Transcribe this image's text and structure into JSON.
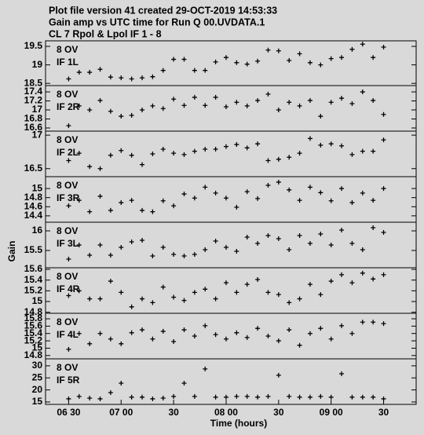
{
  "header": {
    "lines": [
      "Plot file version 41  created 29-OCT-2019 14:53:33",
      "Gain amp vs UTC time for Run Q 00.UVDATA.1",
      "CL 7  Rpol & Lpol  IF 1 - 8"
    ]
  },
  "y_label": "Gain",
  "chart_data": [
    {
      "type": "scatter",
      "labels": [
        "8 OV",
        "IF 1L"
      ],
      "xlim": [
        6.28,
        9.81
      ],
      "ylim": [
        18.44,
        19.65
      ],
      "yticks": [
        18.5,
        19.0,
        19.5
      ],
      "x": [
        6.5,
        6.6,
        6.7,
        6.8,
        6.9,
        7.0,
        7.1,
        7.2,
        7.3,
        7.4,
        7.5,
        7.6,
        7.7,
        7.8,
        7.9,
        8.0,
        8.1,
        8.2,
        8.3,
        8.4,
        8.5,
        8.6,
        8.7,
        8.8,
        8.9,
        9.0,
        9.1,
        9.2,
        9.3,
        9.4,
        9.5
      ],
      "values": [
        18.62,
        18.8,
        18.8,
        18.88,
        18.67,
        18.65,
        18.62,
        18.65,
        18.68,
        18.85,
        19.15,
        19.15,
        18.85,
        18.85,
        19.08,
        19.2,
        19.06,
        19.02,
        19.1,
        19.4,
        19.38,
        19.12,
        19.3,
        19.06,
        19.0,
        19.17,
        19.2,
        19.42,
        19.56,
        19.2,
        19.48
      ]
    },
    {
      "type": "scatter",
      "labels": [
        "8 OV",
        "IF 2R"
      ],
      "xlim": [
        6.28,
        9.81
      ],
      "ylim": [
        16.53,
        17.54
      ],
      "yticks": [
        16.6,
        16.8,
        17.0,
        17.2,
        17.4
      ],
      "x": [
        6.5,
        6.6,
        6.7,
        6.8,
        6.9,
        7.0,
        7.1,
        7.2,
        7.3,
        7.4,
        7.5,
        7.6,
        7.7,
        7.8,
        7.9,
        8.0,
        8.1,
        8.2,
        8.3,
        8.4,
        8.5,
        8.6,
        8.7,
        8.8,
        8.9,
        9.0,
        9.1,
        9.2,
        9.3,
        9.4,
        9.5
      ],
      "values": [
        16.65,
        17.09,
        17.0,
        17.21,
        16.97,
        16.86,
        16.88,
        17.0,
        17.09,
        17.03,
        17.24,
        17.1,
        17.28,
        17.1,
        17.28,
        17.07,
        17.17,
        17.09,
        17.21,
        17.35,
        17.0,
        17.17,
        17.09,
        17.21,
        16.86,
        17.17,
        17.26,
        17.14,
        17.4,
        17.21,
        16.9
      ]
    },
    {
      "type": "scatter",
      "labels": [
        "8 OV",
        "IF 2L"
      ],
      "xlim": [
        6.28,
        9.81
      ],
      "ylim": [
        16.38,
        17.06
      ],
      "yticks": [
        16.5,
        17.0
      ],
      "x": [
        6.5,
        6.6,
        6.7,
        6.8,
        6.9,
        7.0,
        7.1,
        7.2,
        7.3,
        7.4,
        7.5,
        7.6,
        7.7,
        7.8,
        7.9,
        8.0,
        8.1,
        8.2,
        8.3,
        8.4,
        8.5,
        8.6,
        8.7,
        8.8,
        8.9,
        9.0,
        9.1,
        9.2,
        9.3,
        9.4,
        9.5
      ],
      "values": [
        16.62,
        16.73,
        16.53,
        16.5,
        16.7,
        16.77,
        16.7,
        16.56,
        16.72,
        16.79,
        16.73,
        16.71,
        16.76,
        16.79,
        16.79,
        16.83,
        16.86,
        16.81,
        16.87,
        16.62,
        16.64,
        16.67,
        16.73,
        16.95,
        16.85,
        16.87,
        16.84,
        16.71,
        16.76,
        16.76,
        16.93
      ]
    },
    {
      "type": "scatter",
      "labels": [
        "8 OV",
        "IF 3R"
      ],
      "xlim": [
        6.28,
        9.81
      ],
      "ylim": [
        14.26,
        15.26
      ],
      "yticks": [
        14.4,
        14.6,
        14.8,
        15.0
      ],
      "x": [
        6.5,
        6.6,
        6.7,
        6.8,
        6.9,
        7.0,
        7.1,
        7.2,
        7.3,
        7.4,
        7.5,
        7.6,
        7.7,
        7.8,
        7.9,
        8.0,
        8.1,
        8.2,
        8.3,
        8.4,
        8.5,
        8.6,
        8.7,
        8.8,
        8.9,
        9.0,
        9.1,
        9.2,
        9.3,
        9.4,
        9.5
      ],
      "values": [
        14.62,
        14.74,
        14.49,
        14.83,
        14.52,
        14.69,
        14.74,
        14.52,
        14.49,
        14.73,
        14.62,
        14.88,
        14.79,
        15.03,
        14.9,
        14.79,
        14.59,
        14.93,
        14.78,
        15.07,
        15.14,
        14.97,
        14.74,
        15.03,
        14.91,
        14.73,
        15.0,
        14.69,
        14.9,
        14.74,
        15.0
      ]
    },
    {
      "type": "scatter",
      "labels": [
        "8 OV",
        "IF 3L"
      ],
      "xlim": [
        6.28,
        9.81
      ],
      "ylim": [
        15.06,
        16.22
      ],
      "yticks": [
        15.5,
        16.0
      ],
      "x": [
        6.5,
        6.6,
        6.7,
        6.8,
        6.9,
        7.0,
        7.1,
        7.2,
        7.3,
        7.4,
        7.5,
        7.6,
        7.7,
        7.8,
        7.9,
        8.0,
        8.1,
        8.2,
        8.3,
        8.4,
        8.5,
        8.6,
        8.7,
        8.8,
        8.9,
        9.0,
        9.1,
        9.2,
        9.3,
        9.4,
        9.5
      ],
      "values": [
        15.28,
        15.64,
        15.38,
        15.64,
        15.38,
        15.58,
        15.72,
        15.76,
        15.36,
        15.58,
        15.4,
        15.36,
        15.4,
        15.52,
        15.74,
        15.58,
        15.48,
        15.84,
        15.68,
        15.88,
        15.8,
        15.52,
        15.88,
        15.68,
        15.92,
        15.64,
        16.02,
        15.68,
        15.52,
        16.08,
        15.96
      ]
    },
    {
      "type": "scatter",
      "labels": [
        "8 OV",
        "IF 4R"
      ],
      "xlim": [
        6.28,
        9.81
      ],
      "ylim": [
        14.78,
        15.63
      ],
      "yticks": [
        14.8,
        15.0,
        15.2,
        15.4,
        15.6
      ],
      "x": [
        6.5,
        6.6,
        6.7,
        6.8,
        6.9,
        7.0,
        7.1,
        7.2,
        7.3,
        7.4,
        7.5,
        7.6,
        7.7,
        7.8,
        7.9,
        8.0,
        8.1,
        8.2,
        8.3,
        8.4,
        8.5,
        8.6,
        8.7,
        8.8,
        8.9,
        9.0,
        9.1,
        9.2,
        9.3,
        9.4,
        9.5
      ],
      "values": [
        15.11,
        15.2,
        15.05,
        15.05,
        15.38,
        15.17,
        14.9,
        15.05,
        14.98,
        15.27,
        15.08,
        15.02,
        15.17,
        15.23,
        15.05,
        15.35,
        15.17,
        15.32,
        15.41,
        15.17,
        15.13,
        14.98,
        15.05,
        15.32,
        15.13,
        15.38,
        15.5,
        15.35,
        15.53,
        15.42,
        15.5
      ]
    },
    {
      "type": "scatter",
      "labels": [
        "8 OV",
        "IF 4L"
      ],
      "xlim": [
        6.28,
        9.81
      ],
      "ylim": [
        14.71,
        15.95
      ],
      "yticks": [
        14.8,
        15.0,
        15.2,
        15.4,
        15.6,
        15.8
      ],
      "x": [
        6.5,
        6.6,
        6.7,
        6.8,
        6.9,
        7.0,
        7.1,
        7.2,
        7.3,
        7.4,
        7.5,
        7.6,
        7.7,
        7.8,
        7.9,
        8.0,
        8.1,
        8.2,
        8.3,
        8.4,
        8.5,
        8.6,
        8.7,
        8.8,
        8.9,
        9.0,
        9.1,
        9.2,
        9.3,
        9.4,
        9.5
      ],
      "values": [
        14.97,
        15.4,
        15.12,
        15.4,
        15.25,
        15.12,
        15.42,
        15.5,
        15.25,
        15.46,
        15.18,
        15.5,
        15.33,
        15.61,
        15.37,
        15.25,
        15.42,
        15.29,
        15.54,
        15.33,
        15.2,
        15.5,
        15.08,
        15.4,
        15.54,
        15.25,
        15.61,
        15.4,
        15.71,
        15.71,
        15.67
      ]
    },
    {
      "type": "scatter",
      "labels": [
        "8 OV",
        "IF 5R"
      ],
      "xlim": [
        6.28,
        9.81
      ],
      "ylim": [
        14.0,
        32.9
      ],
      "yticks": [
        15,
        20,
        25,
        30
      ],
      "x_label": "Time (hours)",
      "xticks": [
        {
          "value": 6.5,
          "label": "06 30"
        },
        {
          "value": 7.0,
          "label": "07 00"
        },
        {
          "value": 7.5,
          "label": "30"
        },
        {
          "value": 8.0,
          "label": "08 00"
        },
        {
          "value": 8.5,
          "label": "30"
        },
        {
          "value": 9.0,
          "label": "09 00"
        },
        {
          "value": 9.5,
          "label": "30"
        }
      ],
      "x": [
        6.5,
        6.6,
        6.7,
        6.8,
        6.9,
        7.0,
        7.1,
        7.2,
        7.3,
        7.4,
        7.5,
        7.6,
        7.7,
        7.8,
        7.9,
        8.0,
        8.1,
        8.2,
        8.3,
        8.4,
        8.5,
        8.6,
        8.7,
        8.8,
        8.9,
        9.0,
        9.1,
        9.2,
        9.3,
        9.4,
        9.5
      ],
      "values": [
        16.3,
        17.3,
        16.6,
        16.3,
        18.9,
        22.8,
        17.0,
        17.0,
        16.3,
        16.6,
        17.3,
        22.8,
        17.3,
        28.7,
        17.0,
        17.0,
        17.3,
        17.3,
        17.0,
        17.3,
        26.1,
        17.3,
        17.0,
        17.0,
        17.3,
        17.0,
        26.7,
        17.0,
        17.0,
        17.0,
        16.3
      ]
    }
  ]
}
